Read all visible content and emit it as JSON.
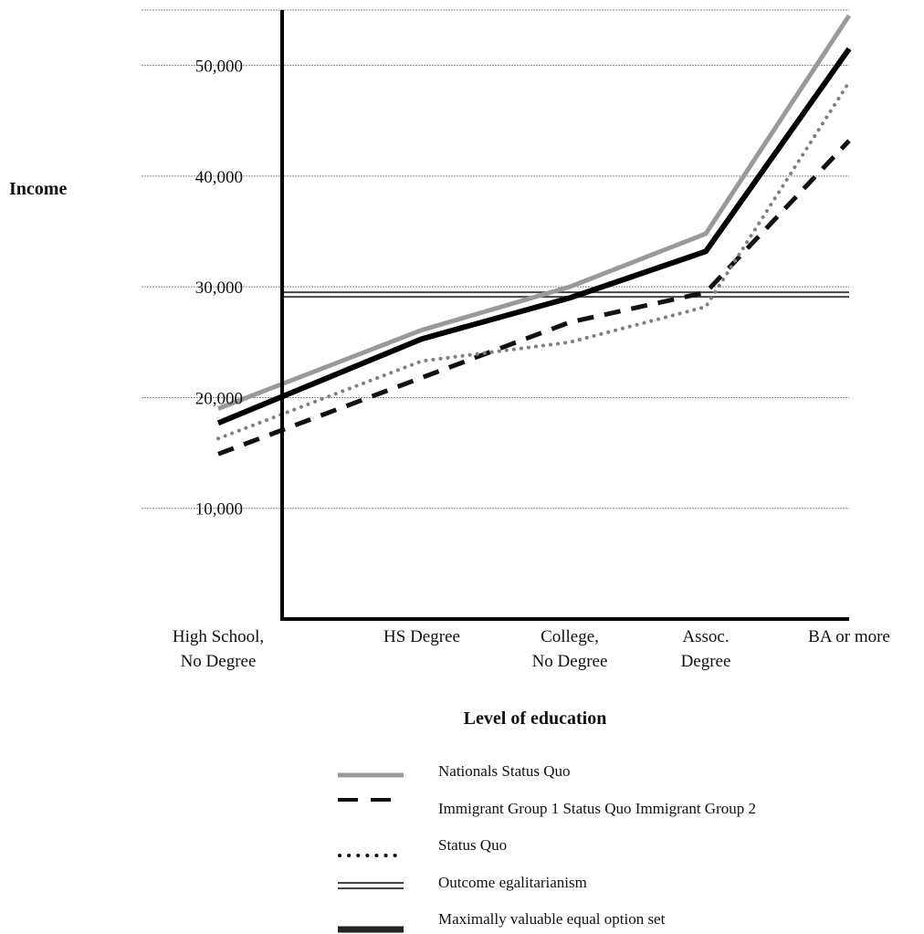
{
  "chart_data": {
    "type": "line",
    "title": "",
    "ylabel": "Income",
    "xlabel": "Level of education",
    "categories": [
      [
        "High School,",
        "No Degree"
      ],
      [
        "HS Degree"
      ],
      [
        "College,",
        "No Degree"
      ],
      [
        "Assoc.",
        "Degree"
      ],
      [
        "BA or more"
      ]
    ],
    "y_ticks": [
      "10,000",
      "20,000",
      "30,000",
      "40,000",
      "50,000"
    ],
    "y_tick_values": [
      10000,
      20000,
      30000,
      40000,
      50000
    ],
    "ylim": [
      0,
      55000
    ],
    "grid": true,
    "series": [
      {
        "name": "Nationals Status Quo",
        "values": [
          19000,
          26100,
          30000,
          34800,
          54500
        ],
        "color": "#999999",
        "style": "solid"
      },
      {
        "name": "Immigrant Group 1 Status Quo",
        "values": [
          14900,
          21800,
          26800,
          29500,
          43200
        ],
        "color": "#111111",
        "style": "dashed"
      },
      {
        "name": "Immigrant Group 2 Status Quo",
        "values": [
          16300,
          23300,
          25000,
          28200,
          48500
        ],
        "color": "#808080",
        "style": "dotted"
      },
      {
        "name": "Maximally valuable equal option set",
        "values": [
          17700,
          25300,
          29000,
          33200,
          51500
        ],
        "color": "#000000",
        "style": "solid-thick"
      }
    ],
    "reference_lines": [
      {
        "name": "Outcome egalitarianism",
        "value": 29300,
        "color": "#444444",
        "style": "double"
      }
    ],
    "legend": {
      "placement": "bottom",
      "entries": [
        {
          "label": "Nationals Status Quo",
          "style": "solid",
          "color": "#999999"
        },
        {
          "label": "Immigrant Group 1 Status Quo Immigrant Group 2",
          "style": "dashed",
          "color": "#111111"
        },
        {
          "label": "Status Quo",
          "style": "dotted",
          "color": "#111111"
        },
        {
          "label": "Outcome egalitarianism",
          "style": "double",
          "color": "#444444"
        },
        {
          "label": "Maximally valuable equal option set",
          "style": "solid-thick",
          "color": "#222222"
        }
      ]
    }
  }
}
